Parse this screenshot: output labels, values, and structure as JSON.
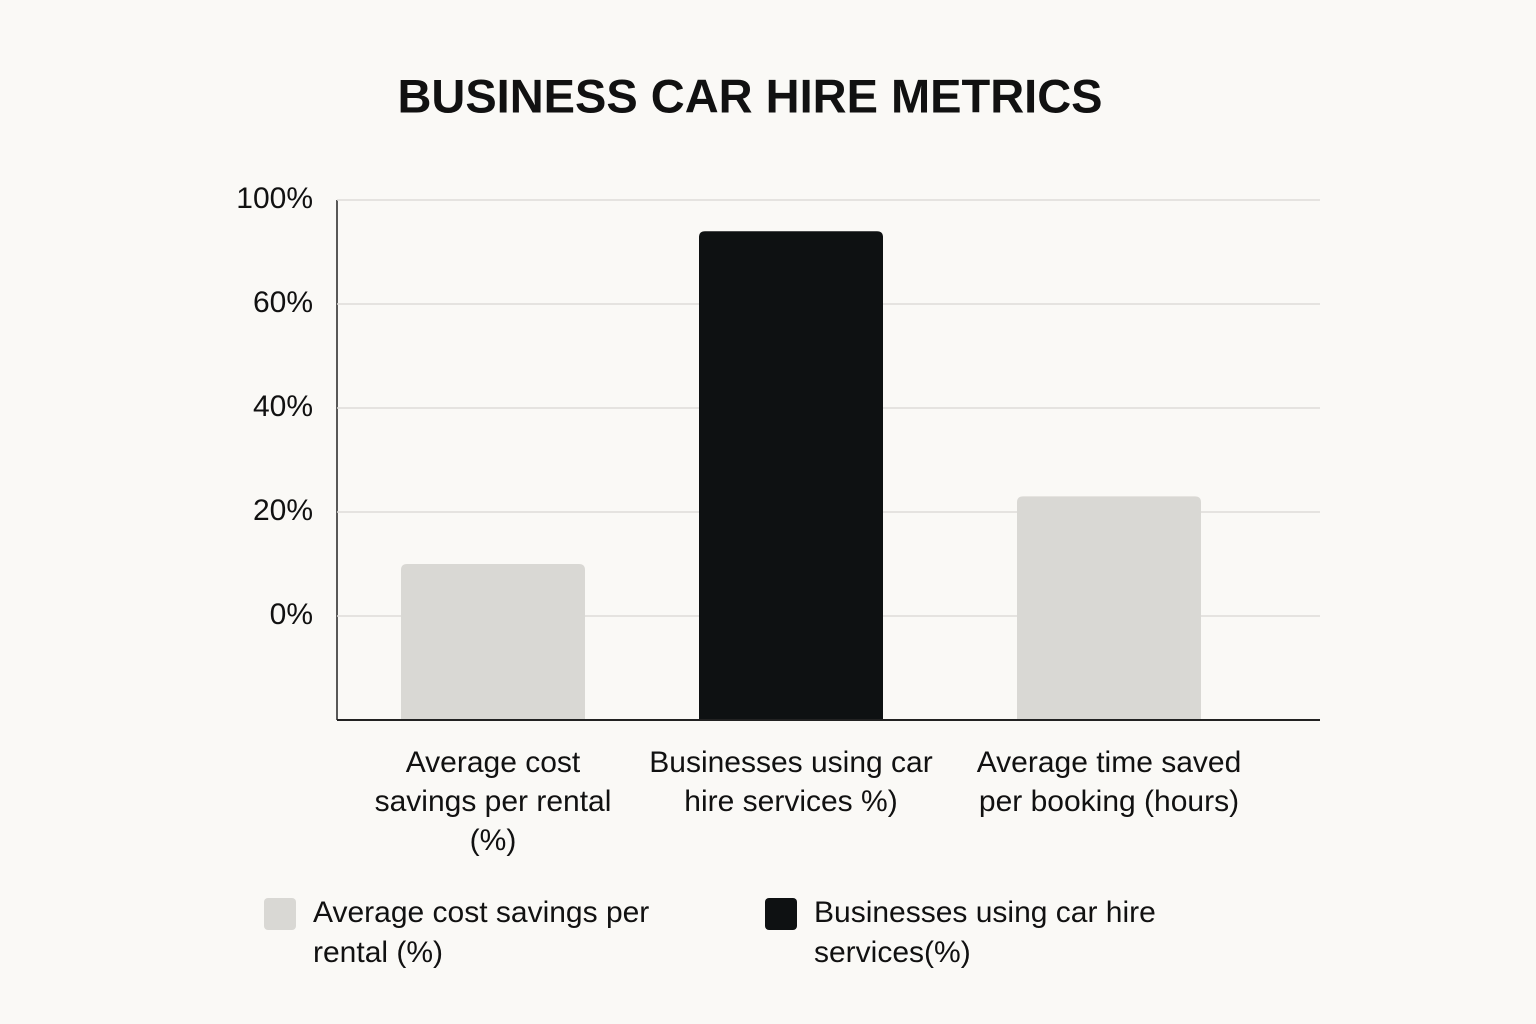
{
  "chart_data": {
    "type": "bar",
    "title": "BUSINESS CAR HIRE METRICS",
    "categories": [
      "Average cost savings per rental (%)",
      "Businesses using car hire services %)",
      "Average time saved per booking (hours)"
    ],
    "values": [
      10,
      88,
      23
    ],
    "colors": [
      "#d9d8d4",
      "#0e1112",
      "#d9d8d4"
    ],
    "ylim": [
      -20,
      100
    ],
    "yticks": [
      {
        "value": 0,
        "label": "0%"
      },
      {
        "value": 20,
        "label": "20%"
      },
      {
        "value": 40,
        "label": "40%"
      },
      {
        "value": 60,
        "label": "60%"
      },
      {
        "value": 100,
        "label": "100%"
      }
    ],
    "grid": true,
    "legend": [
      {
        "label": "Average cost savings per rental (%)",
        "color": "#d9d8d4"
      },
      {
        "label": "Businesses using car hire services(%)",
        "color": "#0e1112"
      }
    ]
  }
}
